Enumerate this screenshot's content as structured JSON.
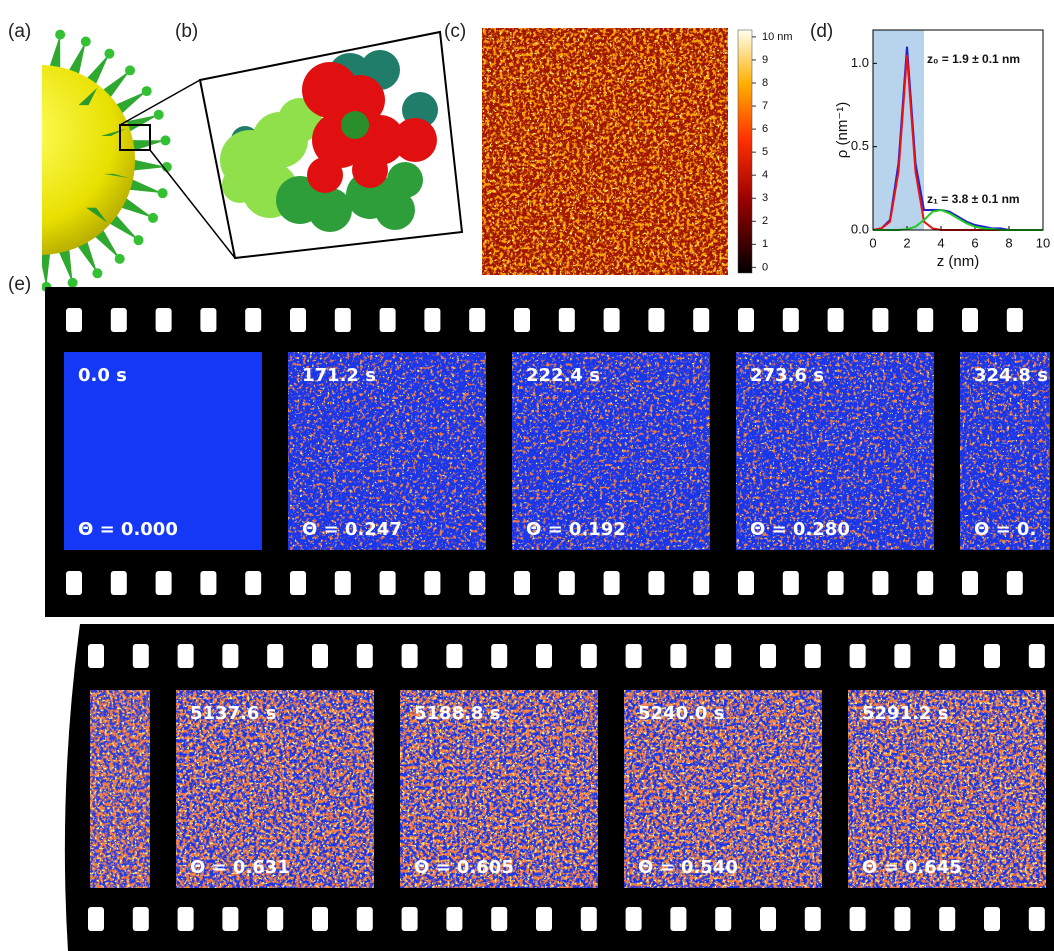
{
  "panel_labels": [
    "(a)",
    "(b)",
    "(c)",
    "(d)",
    "(e)"
  ],
  "colorbar": {
    "lim": [
      -0.2,
      10.3
    ],
    "ticks": [
      0,
      1,
      2,
      3,
      4,
      5,
      6,
      7,
      8,
      9,
      {
        "value": 10,
        "label": "10 nm"
      }
    ]
  },
  "chart_data": {
    "type": "line",
    "xlabel": "z (nm)",
    "ylabel": "ρ (nm⁻¹)",
    "xlim": [
      0,
      10
    ],
    "ylim": [
      0,
      1.2
    ],
    "xticks": [
      0,
      2,
      4,
      6,
      8,
      10
    ],
    "yticks": [
      {
        "value": 0,
        "label": "0.0"
      },
      {
        "value": 0.5,
        "label": "0.5"
      },
      {
        "value": 1,
        "label": "1.0"
      }
    ],
    "shaded_range": [
      0,
      3
    ],
    "x": [
      0,
      0.5,
      1,
      1.5,
      2,
      2.5,
      3,
      3.5,
      4,
      4.5,
      5,
      5.5,
      6,
      6.5,
      7,
      7.5,
      8,
      8.5,
      9,
      9.5,
      10
    ],
    "series": [
      {
        "color": "#2020d0",
        "values": [
          0,
          0.01,
          0.06,
          0.4,
          1.1,
          0.4,
          0.12,
          0.12,
          0.12,
          0.11,
          0.08,
          0.05,
          0.03,
          0.02,
          0.01,
          0.01,
          0,
          0,
          0,
          0,
          0
        ]
      },
      {
        "color": "#ee1111",
        "values": [
          0,
          0.01,
          0.05,
          0.35,
          1.05,
          0.35,
          0.05,
          0.01,
          0,
          0,
          0,
          0,
          0,
          0,
          0,
          0,
          0,
          0,
          0,
          0,
          0
        ]
      },
      {
        "color": "#22cc22",
        "values": [
          0,
          0,
          0,
          0,
          0.005,
          0.02,
          0.06,
          0.11,
          0.12,
          0.1,
          0.07,
          0.04,
          0.02,
          0.01,
          0.005,
          0,
          0,
          0,
          0,
          0,
          0
        ]
      }
    ],
    "annotations": [
      {
        "text": "z₀ = 1.9 ± 0.1 nm",
        "color": "#ee1111"
      },
      {
        "text": "z₁ = 3.8 ± 0.1 nm",
        "color": "#22dd22"
      }
    ]
  },
  "film": {
    "rows": [
      {
        "frames": [
          {
            "time": "0.0 s",
            "theta": "Θ = 0.000"
          },
          {
            "time": "171.2 s",
            "theta": "Θ = 0.247"
          },
          {
            "time": "222.4 s",
            "theta": "Θ = 0.192"
          },
          {
            "time": "273.6 s",
            "theta": "Θ = 0.280"
          },
          {
            "time": "324.8 s",
            "theta": "Θ = 0."
          }
        ]
      },
      {
        "frames": [
          {
            "time": "5137.6 s",
            "theta": "Θ = 0.631"
          },
          {
            "time": "5188.8 s",
            "theta": "Θ = 0.605"
          },
          {
            "time": "5240.0 s",
            "theta": "Θ = 0.540"
          },
          {
            "time": "5291.2 s",
            "theta": "Θ = 0.645"
          }
        ]
      }
    ]
  }
}
